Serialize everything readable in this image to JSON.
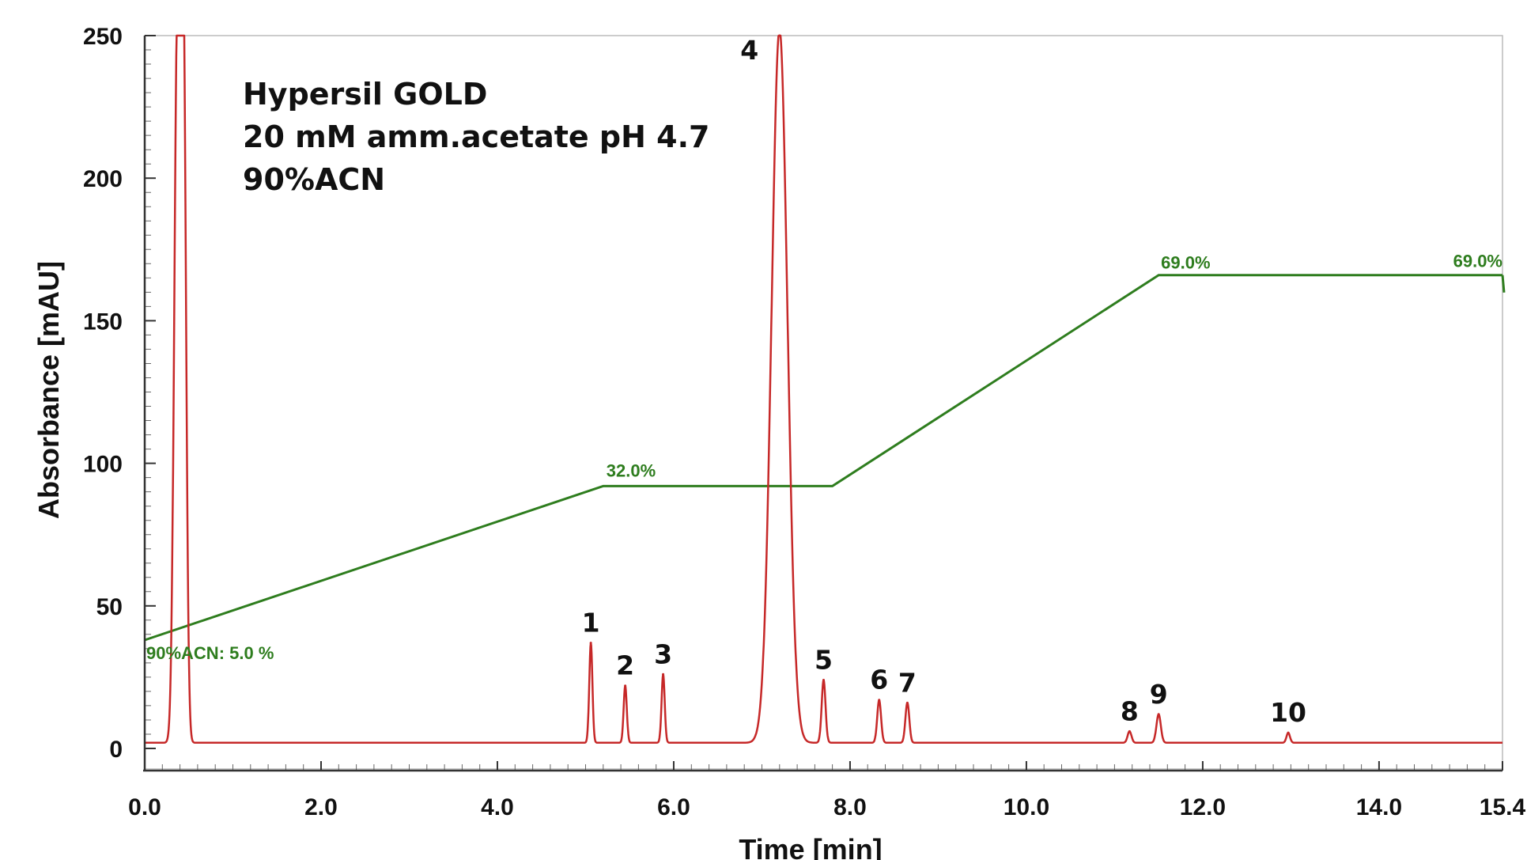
{
  "chart_data": {
    "type": "line",
    "xlabel": "Time [min]",
    "ylabel": "Absorbance [mAU]",
    "xlim": [
      0.0,
      15.4
    ],
    "ylim": [
      0,
      250
    ],
    "x_ticks": [
      "0.0",
      "2.0",
      "4.0",
      "6.0",
      "8.0",
      "10.0",
      "12.0",
      "14.0",
      "15.4"
    ],
    "y_ticks": [
      "0",
      "50",
      "100",
      "150",
      "200",
      "250"
    ],
    "grid": false,
    "annotation_lines": [
      "Hypersil GOLD",
      "20 mM amm.acetate pH 4.7",
      "90%ACN"
    ],
    "colors": {
      "chromatogram": "#c62828",
      "gradient": "#2e7d1e",
      "axis": "#333333"
    },
    "series": [
      {
        "kind": "chromatogram",
        "baseline": 2,
        "peaks": [
          {
            "label": "",
            "t": 0.37,
            "height": 250,
            "width": 0.035
          },
          {
            "label": "",
            "t": 0.44,
            "height": 237,
            "width": 0.03
          },
          {
            "label": "1",
            "t": 5.06,
            "height": 35,
            "width": 0.018
          },
          {
            "label": "2",
            "t": 5.45,
            "height": 20,
            "width": 0.018
          },
          {
            "label": "3",
            "t": 5.88,
            "height": 24,
            "width": 0.018
          },
          {
            "label": "4",
            "t": 7.2,
            "height": 250,
            "width": 0.09
          },
          {
            "label": "5",
            "t": 7.7,
            "height": 22,
            "width": 0.022
          },
          {
            "label": "6",
            "t": 8.33,
            "height": 15,
            "width": 0.022
          },
          {
            "label": "7",
            "t": 8.65,
            "height": 14,
            "width": 0.022
          },
          {
            "label": "8",
            "t": 11.17,
            "height": 4,
            "width": 0.022
          },
          {
            "label": "9",
            "t": 11.5,
            "height": 10,
            "width": 0.025
          },
          {
            "label": "10",
            "t": 12.97,
            "height": 3.5,
            "width": 0.02
          }
        ]
      },
      {
        "kind": "gradient",
        "unit": "% 90%ACN",
        "percent_min": 5.0,
        "percent_max": 69.0,
        "y_at_min": 38,
        "y_at_max": 166,
        "points": [
          {
            "t": 0.0,
            "percent": 5.0
          },
          {
            "t": 5.2,
            "percent": 32.0
          },
          {
            "t": 7.8,
            "percent": 32.0
          },
          {
            "t": 11.5,
            "percent": 69.0
          },
          {
            "t": 15.4,
            "percent": 69.0
          }
        ],
        "labels": [
          {
            "text": "90%ACN: 5.0 %",
            "t": 0.0,
            "percent": 5.0
          },
          {
            "text": "32.0%",
            "t": 5.2,
            "percent": 32.0
          },
          {
            "text": "69.0%",
            "t": 11.5,
            "percent": 69.0
          },
          {
            "text": "69.0%",
            "t": 15.4,
            "percent": 69.0
          }
        ]
      }
    ]
  }
}
